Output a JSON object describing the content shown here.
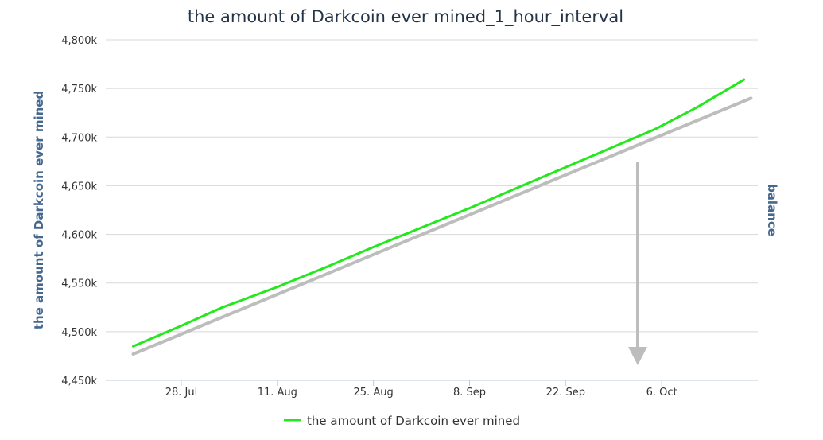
{
  "chart_data": {
    "type": "line",
    "title": "the amount of Darkcoin ever mined_1_hour_interval",
    "ylabel": "the amount of Darkcoin ever mined",
    "ylabel_right": "balance",
    "ylim": [
      4450,
      4800
    ],
    "y_ticks": [
      "4,450k",
      "4,500k",
      "4,550k",
      "4,600k",
      "4,650k",
      "4,700k",
      "4,750k",
      "4,800k"
    ],
    "x_ticks": [
      "28. Jul",
      "11. Aug",
      "25. Aug",
      "8. Sep",
      "22. Sep",
      "6. Oct"
    ],
    "grid": true,
    "legend_position": "bottom-center",
    "series": [
      {
        "name": "the amount of Darkcoin ever mined",
        "color": "#22e81c",
        "x": [
          "2014-07-21",
          "2014-07-28",
          "2014-08-03",
          "2014-08-11",
          "2014-08-18",
          "2014-08-25",
          "2014-09-01",
          "2014-09-08",
          "2014-09-15",
          "2014-09-22",
          "2014-09-29",
          "2014-10-05",
          "2014-10-11",
          "2014-10-18"
        ],
        "values": [
          4485,
          4506,
          4525,
          4546,
          4566,
          4587,
          4607,
          4627,
          4648,
          4669,
          4690,
          4708,
          4730,
          4759
        ]
      },
      {
        "name": "",
        "color": "#bdbdbd",
        "x": [
          "2014-07-21",
          "2014-10-19"
        ],
        "values": [
          4477,
          4740
        ]
      }
    ],
    "annotations": [
      {
        "type": "arrow",
        "direction": "down",
        "color": "#bdbdbd"
      }
    ]
  }
}
